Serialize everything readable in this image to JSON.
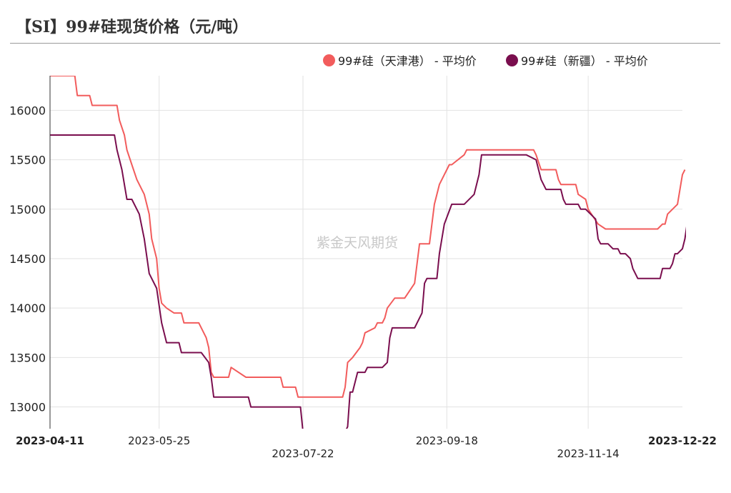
{
  "title": "【SI】99#硅现货价格（元/吨）",
  "watermark": "紫金天风期货",
  "chart_data": {
    "type": "line",
    "ylim": [
      12780,
      16350
    ],
    "yticks": [
      13000,
      13500,
      14000,
      14500,
      15000,
      15500,
      16000
    ],
    "x_start": "2023-04-11",
    "x_end": "2023-12-22",
    "xticks": [
      {
        "label": "2023-04-11",
        "bold": true,
        "row": 0
      },
      {
        "label": "2023-05-25",
        "bold": false,
        "row": 0
      },
      {
        "label": "2023-07-22",
        "bold": false,
        "row": 1
      },
      {
        "label": "2023-09-18",
        "bold": false,
        "row": 0
      },
      {
        "label": "2023-11-14",
        "bold": false,
        "row": 1
      },
      {
        "label": "2023-12-22",
        "bold": true,
        "row": 0
      }
    ],
    "grid": true,
    "legend_position": "top-right",
    "series": [
      {
        "name": "99#硅（天津港） - 平均价",
        "color": "#f25c5c",
        "points": [
          [
            "2023-04-11",
            16350
          ],
          [
            "2023-04-21",
            16350
          ],
          [
            "2023-04-22",
            16150
          ],
          [
            "2023-04-27",
            16150
          ],
          [
            "2023-04-28",
            16050
          ],
          [
            "2023-05-08",
            16050
          ],
          [
            "2023-05-09",
            15900
          ],
          [
            "2023-05-11",
            15750
          ],
          [
            "2023-05-12",
            15600
          ],
          [
            "2023-05-14",
            15450
          ],
          [
            "2023-05-16",
            15300
          ],
          [
            "2023-05-19",
            15150
          ],
          [
            "2023-05-21",
            14950
          ],
          [
            "2023-05-22",
            14700
          ],
          [
            "2023-05-24",
            14500
          ],
          [
            "2023-05-25",
            14200
          ],
          [
            "2023-05-26",
            14050
          ],
          [
            "2023-05-28",
            14000
          ],
          [
            "2023-05-31",
            13950
          ],
          [
            "2023-06-03",
            13950
          ],
          [
            "2023-06-04",
            13850
          ],
          [
            "2023-06-10",
            13850
          ],
          [
            "2023-06-13",
            13700
          ],
          [
            "2023-06-14",
            13600
          ],
          [
            "2023-06-15",
            13350
          ],
          [
            "2023-06-16",
            13300
          ],
          [
            "2023-06-22",
            13300
          ],
          [
            "2023-06-23",
            13400
          ],
          [
            "2023-06-29",
            13300
          ],
          [
            "2023-07-13",
            13300
          ],
          [
            "2023-07-14",
            13200
          ],
          [
            "2023-07-19",
            13200
          ],
          [
            "2023-07-20",
            13100
          ],
          [
            "2023-08-01",
            13100
          ],
          [
            "2023-08-07",
            13100
          ],
          [
            "2023-08-08",
            13200
          ],
          [
            "2023-08-09",
            13450
          ],
          [
            "2023-08-11",
            13500
          ],
          [
            "2023-08-14",
            13600
          ],
          [
            "2023-08-15",
            13650
          ],
          [
            "2023-08-16",
            13750
          ],
          [
            "2023-08-20",
            13800
          ],
          [
            "2023-08-21",
            13850
          ],
          [
            "2023-08-23",
            13850
          ],
          [
            "2023-08-24",
            13900
          ],
          [
            "2023-08-25",
            14000
          ],
          [
            "2023-08-28",
            14100
          ],
          [
            "2023-09-01",
            14100
          ],
          [
            "2023-09-05",
            14250
          ],
          [
            "2023-09-07",
            14650
          ],
          [
            "2023-09-11",
            14650
          ],
          [
            "2023-09-13",
            15050
          ],
          [
            "2023-09-15",
            15250
          ],
          [
            "2023-09-17",
            15350
          ],
          [
            "2023-09-18",
            15400
          ],
          [
            "2023-09-19",
            15450
          ],
          [
            "2023-09-20",
            15450
          ],
          [
            "2023-09-25",
            15550
          ],
          [
            "2023-09-26",
            15600
          ],
          [
            "2023-10-23",
            15600
          ],
          [
            "2023-10-24",
            15550
          ],
          [
            "2023-10-26",
            15400
          ],
          [
            "2023-11-01",
            15400
          ],
          [
            "2023-11-02",
            15300
          ],
          [
            "2023-11-03",
            15250
          ],
          [
            "2023-11-09",
            15250
          ],
          [
            "2023-11-10",
            15150
          ],
          [
            "2023-11-13",
            15100
          ],
          [
            "2023-11-14",
            15000
          ],
          [
            "2023-11-18",
            14850
          ],
          [
            "2023-11-21",
            14800
          ],
          [
            "2023-12-12",
            14800
          ],
          [
            "2023-12-14",
            14850
          ],
          [
            "2023-12-15",
            14850
          ],
          [
            "2023-12-16",
            14950
          ],
          [
            "2023-12-18",
            15000
          ],
          [
            "2023-12-20",
            15050
          ],
          [
            "2023-12-22",
            15350
          ],
          [
            "2023-12-23",
            15400
          ]
        ]
      },
      {
        "name": "99#硅（新疆） - 平均价",
        "color": "#7a0e4e",
        "points": [
          [
            "2023-04-11",
            15750
          ],
          [
            "2023-05-07",
            15750
          ],
          [
            "2023-05-08",
            15600
          ],
          [
            "2023-05-10",
            15400
          ],
          [
            "2023-05-12",
            15100
          ],
          [
            "2023-05-14",
            15100
          ],
          [
            "2023-05-17",
            14950
          ],
          [
            "2023-05-19",
            14700
          ],
          [
            "2023-05-21",
            14350
          ],
          [
            "2023-05-24",
            14200
          ],
          [
            "2023-05-26",
            13850
          ],
          [
            "2023-05-28",
            13650
          ],
          [
            "2023-06-02",
            13650
          ],
          [
            "2023-06-03",
            13550
          ],
          [
            "2023-06-11",
            13550
          ],
          [
            "2023-06-14",
            13450
          ],
          [
            "2023-06-15",
            13300
          ],
          [
            "2023-06-16",
            13100
          ],
          [
            "2023-06-30",
            13100
          ],
          [
            "2023-07-01",
            13000
          ],
          [
            "2023-07-21",
            13000
          ],
          [
            "2023-07-22",
            12750
          ],
          [
            "2023-08-08",
            12750
          ],
          [
            "2023-08-09",
            12800
          ],
          [
            "2023-08-10",
            13150
          ],
          [
            "2023-08-11",
            13150
          ],
          [
            "2023-08-13",
            13350
          ],
          [
            "2023-08-16",
            13350
          ],
          [
            "2023-08-17",
            13400
          ],
          [
            "2023-08-23",
            13400
          ],
          [
            "2023-08-25",
            13450
          ],
          [
            "2023-08-26",
            13700
          ],
          [
            "2023-08-27",
            13800
          ],
          [
            "2023-09-05",
            13800
          ],
          [
            "2023-09-08",
            13950
          ],
          [
            "2023-09-09",
            14250
          ],
          [
            "2023-09-10",
            14300
          ],
          [
            "2023-09-14",
            14300
          ],
          [
            "2023-09-15",
            14550
          ],
          [
            "2023-09-17",
            14850
          ],
          [
            "2023-09-20",
            15050
          ],
          [
            "2023-09-25",
            15050
          ],
          [
            "2023-09-29",
            15150
          ],
          [
            "2023-10-01",
            15350
          ],
          [
            "2023-10-02",
            15550
          ],
          [
            "2023-10-20",
            15550
          ],
          [
            "2023-10-24",
            15500
          ],
          [
            "2023-10-26",
            15300
          ],
          [
            "2023-10-28",
            15200
          ],
          [
            "2023-11-03",
            15200
          ],
          [
            "2023-11-04",
            15100
          ],
          [
            "2023-11-05",
            15050
          ],
          [
            "2023-11-10",
            15050
          ],
          [
            "2023-11-11",
            15000
          ],
          [
            "2023-11-13",
            15000
          ],
          [
            "2023-11-17",
            14900
          ],
          [
            "2023-11-18",
            14700
          ],
          [
            "2023-11-19",
            14650
          ],
          [
            "2023-11-22",
            14650
          ],
          [
            "2023-11-24",
            14600
          ],
          [
            "2023-11-26",
            14600
          ],
          [
            "2023-11-27",
            14550
          ],
          [
            "2023-11-29",
            14550
          ],
          [
            "2023-12-01",
            14500
          ],
          [
            "2023-12-02",
            14400
          ],
          [
            "2023-12-04",
            14300
          ],
          [
            "2023-12-13",
            14300
          ],
          [
            "2023-12-14",
            14400
          ],
          [
            "2023-12-17",
            14400
          ],
          [
            "2023-12-18",
            14450
          ],
          [
            "2023-12-19",
            14550
          ],
          [
            "2023-12-20",
            14550
          ],
          [
            "2023-12-22",
            14600
          ],
          [
            "2023-12-23",
            14700
          ],
          [
            "2023-12-25",
            15050
          ]
        ]
      }
    ]
  }
}
